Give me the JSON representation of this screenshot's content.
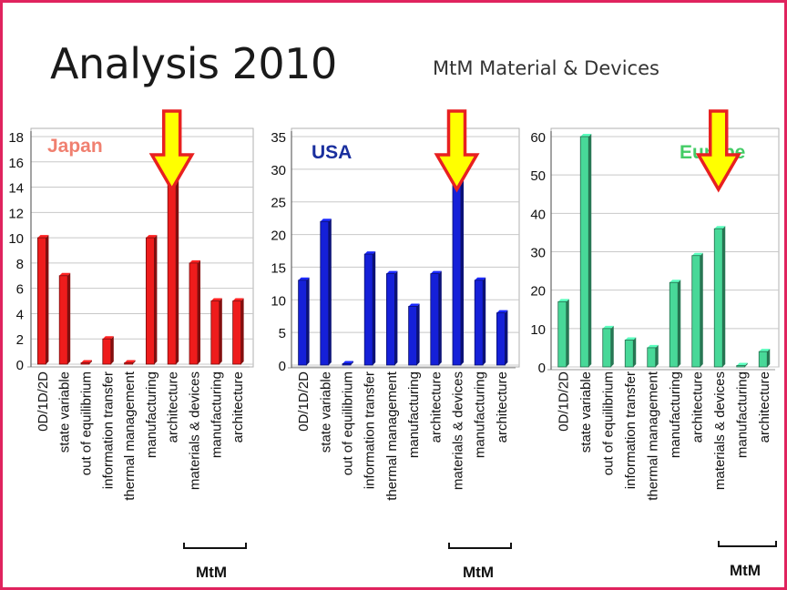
{
  "slide": {
    "title": "Analysis 2010",
    "subtitle": "MtM Material & Devices",
    "accent_border": "#e0245e"
  },
  "chart_data": [
    {
      "type": "bar",
      "title": "Japan",
      "title_color": "#f08070",
      "bar_color": "#ee1c1c",
      "categories": [
        "0D/1D/2D",
        "state variable",
        "out of equilibrium",
        "information transfer",
        "thermal management",
        "manufacturing",
        "architecture",
        "materials & devices",
        "manufacturing",
        "architecture"
      ],
      "values": [
        10,
        7,
        0,
        2,
        0,
        10,
        17,
        8,
        5,
        5
      ],
      "ylim": [
        0,
        18
      ],
      "yticks": [
        0,
        2,
        4,
        6,
        8,
        10,
        12,
        14,
        16,
        18
      ],
      "grid": true,
      "bracket_label": "MtM",
      "arrow_on_category_index": 6
    },
    {
      "type": "bar",
      "title": "USA",
      "title_color": "#1a2f9e",
      "bar_color": "#1520d8",
      "categories": [
        "0D/1D/2D",
        "state variable",
        "out of equilibrium",
        "information transfer",
        "thermal management",
        "manufacturing",
        "architecture",
        "materials & devices",
        "manufacturing",
        "architecture"
      ],
      "values": [
        13,
        22,
        0,
        17,
        14,
        9,
        14,
        33,
        13,
        8
      ],
      "ylim": [
        0,
        35
      ],
      "yticks": [
        0,
        5,
        10,
        15,
        20,
        25,
        30,
        35
      ],
      "grid": true,
      "bracket_label": "MtM",
      "arrow_on_category_index": 7
    },
    {
      "type": "bar",
      "title": "Europe",
      "title_color": "#44cc66",
      "bar_color": "#48d898",
      "categories": [
        "0D/1D/2D",
        "state variable",
        "out of equilibrium",
        "information transfer",
        "thermal management",
        "manufacturing",
        "architecture",
        "materials & devices",
        "manufacturing",
        "architecture"
      ],
      "values": [
        17,
        60,
        10,
        7,
        5,
        22,
        29,
        36,
        0,
        4
      ],
      "ylim": [
        0,
        60
      ],
      "yticks": [
        0,
        10,
        20,
        30,
        40,
        50,
        60
      ],
      "grid": true,
      "bracket_label": "MtM",
      "arrow_on_category_index": 7
    }
  ]
}
